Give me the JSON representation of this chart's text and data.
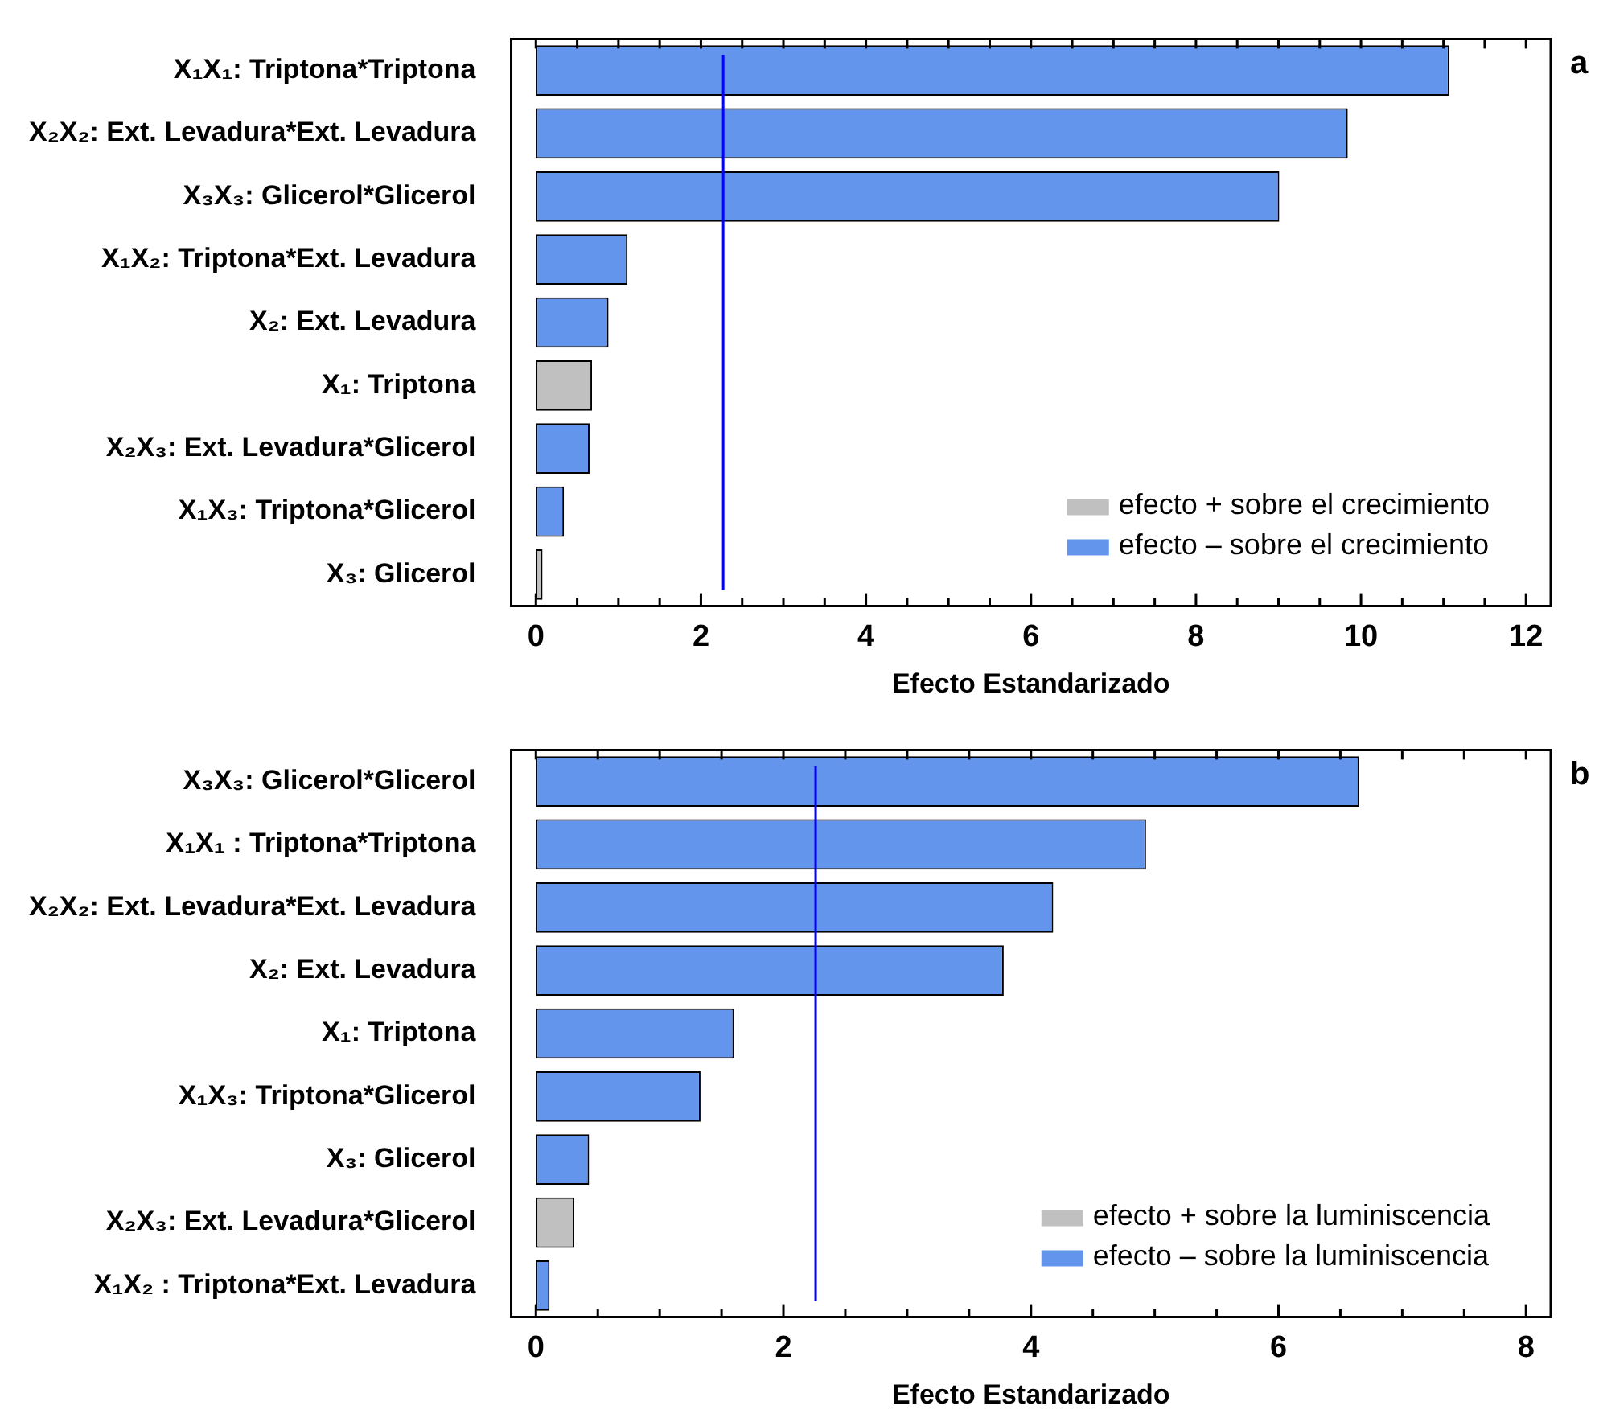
{
  "chart_data": [
    {
      "type": "bar",
      "orientation": "horizontal",
      "categories": [
        "X₁X₁: Triptona*Triptona",
        "X₂X₂: Ext. Levadura*Ext. Levadura",
        "X₃X₃: Glicerol*Glicerol",
        "X₁X₂: Triptona*Ext. Levadura",
        "X₂: Ext. Levadura",
        "X₁: Triptona",
        "X₂X₃: Ext. Levadura*Glicerol",
        "X₁X₃: Triptona*Glicerol",
        "X₃: Glicerol"
      ],
      "series": [
        {
          "name": "efecto + sobre el crecimiento",
          "color": "#c0c0c0",
          "values": [
            null,
            null,
            null,
            null,
            null,
            0.68,
            null,
            null,
            0.08
          ]
        },
        {
          "name": "efecto – sobre el crecimiento",
          "color": "#6495ed",
          "values": [
            11.07,
            9.84,
            9.01,
            1.11,
            0.88,
            null,
            0.65,
            0.34,
            null
          ]
        }
      ],
      "xlabel": "Efecto Estandarizado",
      "xlim": [
        -0.3,
        12.3
      ],
      "xticks": [
        0,
        {
          "value": 0.5,
          "label": null
        },
        {
          "value": 1,
          "label": null
        },
        {
          "value": 1.5,
          "label": null
        },
        2,
        {
          "value": 2.5,
          "label": null
        },
        {
          "value": 3,
          "label": null
        },
        {
          "value": 3.5,
          "label": null
        },
        4,
        {
          "value": 4.5,
          "label": null
        },
        {
          "value": 5,
          "label": null
        },
        {
          "value": 5.5,
          "label": null
        },
        6,
        {
          "value": 6.5,
          "label": null
        },
        {
          "value": 7,
          "label": null
        },
        {
          "value": 7.5,
          "label": null
        },
        8,
        {
          "value": 8.5,
          "label": null
        },
        {
          "value": 9,
          "label": null
        },
        {
          "value": 9.5,
          "label": null
        },
        10,
        {
          "value": 10.5,
          "label": null
        },
        {
          "value": 11,
          "label": null
        },
        {
          "value": 11.5,
          "label": null
        },
        12
      ],
      "ref_lines": [
        {
          "axis": "x",
          "value": 2.27,
          "color": "#0000ff"
        }
      ],
      "legend": "bottom right",
      "grid": false,
      "annotations": [
        "a"
      ]
    },
    {
      "type": "bar",
      "orientation": "horizontal",
      "categories": [
        "X₃X₃: Glicerol*Glicerol",
        "X₁X₁ : Triptona*Triptona",
        "X₂X₂: Ext. Levadura*Ext. Levadura",
        "X₂: Ext. Levadura",
        "X₁: Triptona",
        "X₁X₃: Triptona*Glicerol",
        "X₃: Glicerol",
        "X₂X₃: Ext. Levadura*Glicerol",
        "X₁X₂ : Triptona*Ext. Levadura"
      ],
      "series": [
        {
          "name": "efecto + sobre la luminiscencia",
          "color": "#c0c0c0",
          "values": [
            null,
            null,
            null,
            null,
            null,
            null,
            null,
            0.31,
            null
          ]
        },
        {
          "name": "efecto – sobre la luminiscencia",
          "color": "#6495ed",
          "values": [
            6.65,
            4.93,
            4.18,
            3.78,
            1.6,
            1.33,
            0.43,
            null,
            0.11
          ]
        }
      ],
      "xlabel": "Efecto Estandarizado",
      "xlim": [
        -0.2,
        8.2
      ],
      "xticks": [
        0,
        {
          "value": 0.5,
          "label": null
        },
        {
          "value": 1,
          "label": null
        },
        {
          "value": 1.5,
          "label": null
        },
        2,
        {
          "value": 2.5,
          "label": null
        },
        {
          "value": 3,
          "label": null
        },
        {
          "value": 3.5,
          "label": null
        },
        4,
        {
          "value": 4.5,
          "label": null
        },
        {
          "value": 5,
          "label": null
        },
        {
          "value": 5.5,
          "label": null
        },
        6,
        {
          "value": 6.5,
          "label": null
        },
        {
          "value": 7,
          "label": null
        },
        {
          "value": 7.5,
          "label": null
        },
        8
      ],
      "ref_lines": [
        {
          "axis": "x",
          "value": 2.26,
          "color": "#0000ff"
        }
      ],
      "legend": "bottom right",
      "grid": false,
      "annotations": [
        "b"
      ]
    }
  ]
}
